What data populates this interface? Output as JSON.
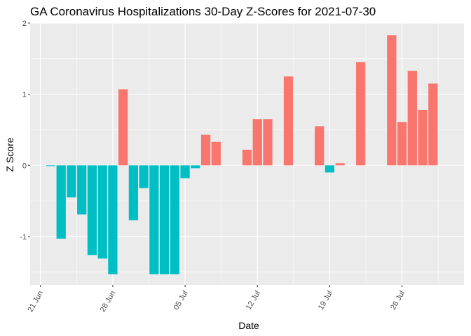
{
  "chart_data": {
    "type": "bar",
    "title": "GA Coronavirus Hospitalizations 30-Day Z-Scores for 2021-07-30",
    "xlabel": "Date",
    "ylabel": "Z Score",
    "x_ticks": [
      {
        "date": "2021-06-21",
        "label": "21 Jun"
      },
      {
        "date": "2021-06-28",
        "label": "28 Jun"
      },
      {
        "date": "2021-07-05",
        "label": "05 Jul"
      },
      {
        "date": "2021-07-12",
        "label": "12 Jul"
      },
      {
        "date": "2021-07-19",
        "label": "19 Jul"
      },
      {
        "date": "2021-07-26",
        "label": "26 Jul"
      }
    ],
    "y_ticks": [
      -1,
      0,
      1,
      2
    ],
    "xlim": [
      "2021-06-20",
      "2021-08-01"
    ],
    "ylim": [
      -1.68,
      2.0
    ],
    "grid": true,
    "legend": "none",
    "colors": {
      "positive": "#F8766D",
      "negative": "#00BFC4",
      "panel": "#EBEBEB",
      "grid": "#FFFFFF"
    },
    "bars": [
      {
        "date": "2021-06-22",
        "value": -0.01
      },
      {
        "date": "2021-06-23",
        "value": -1.03
      },
      {
        "date": "2021-06-24",
        "value": -0.45
      },
      {
        "date": "2021-06-25",
        "value": -0.69
      },
      {
        "date": "2021-06-26",
        "value": -1.26
      },
      {
        "date": "2021-06-27",
        "value": -1.31
      },
      {
        "date": "2021-06-28",
        "value": -1.53
      },
      {
        "date": "2021-06-29",
        "value": 1.07
      },
      {
        "date": "2021-06-30",
        "value": -0.77
      },
      {
        "date": "2021-07-01",
        "value": -0.32
      },
      {
        "date": "2021-07-02",
        "value": -1.53
      },
      {
        "date": "2021-07-03",
        "value": -1.53
      },
      {
        "date": "2021-07-04",
        "value": -1.53
      },
      {
        "date": "2021-07-05",
        "value": -0.18
      },
      {
        "date": "2021-07-06",
        "value": -0.04
      },
      {
        "date": "2021-07-07",
        "value": 0.43
      },
      {
        "date": "2021-07-08",
        "value": 0.33
      },
      {
        "date": "2021-07-11",
        "value": 0.22
      },
      {
        "date": "2021-07-12",
        "value": 0.65
      },
      {
        "date": "2021-07-13",
        "value": 0.65
      },
      {
        "date": "2021-07-15",
        "value": 1.25
      },
      {
        "date": "2021-07-18",
        "value": 0.55
      },
      {
        "date": "2021-07-19",
        "value": -0.1
      },
      {
        "date": "2021-07-20",
        "value": 0.03
      },
      {
        "date": "2021-07-22",
        "value": 1.45
      },
      {
        "date": "2021-07-25",
        "value": 1.83
      },
      {
        "date": "2021-07-26",
        "value": 0.61
      },
      {
        "date": "2021-07-27",
        "value": 1.33
      },
      {
        "date": "2021-07-28",
        "value": 0.78
      },
      {
        "date": "2021-07-29",
        "value": 1.15
      }
    ]
  }
}
